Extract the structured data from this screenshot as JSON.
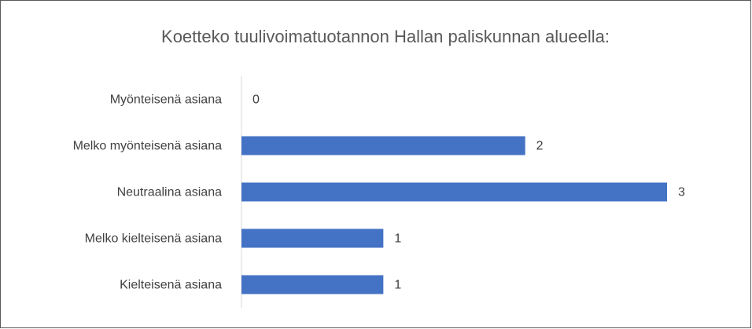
{
  "chart_data": {
    "type": "bar",
    "orientation": "horizontal",
    "title": "Koetteko tuulivoimatuotannon Hallan paliskunnan alueella:",
    "categories": [
      "Myönteisenä asiana",
      "Melko myönteisenä asiana",
      "Neutraalina asiana",
      "Melko kielteisenä asiana",
      "Kielteisenä asiana"
    ],
    "values": [
      0,
      2,
      3,
      1,
      1
    ],
    "color": "#4472c4"
  }
}
